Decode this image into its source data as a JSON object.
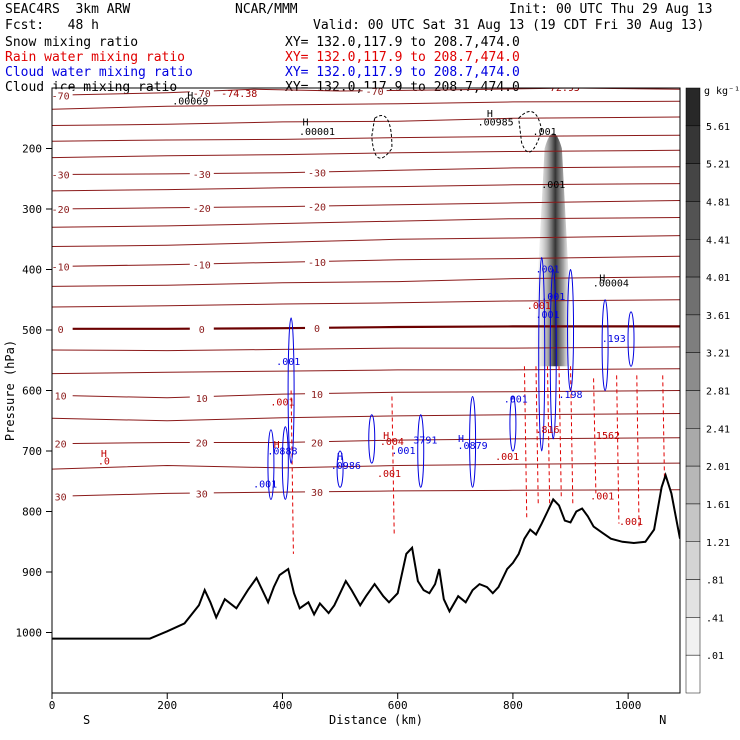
{
  "header": {
    "model": "SEAC4RS  3km ARW",
    "org": "NCAR/MMM",
    "init": "Init: 00 UTC Thu 29 Aug 13",
    "fcst": "Fcst:   48 h",
    "valid": "Valid: 00 UTC Sat 31 Aug 13 (19 CDT Fri 30 Aug 13)"
  },
  "fields": [
    {
      "name": "Snow mixing ratio",
      "color": "#000000",
      "xy": "XY= 132.0,117.9 to 208.7,474.0"
    },
    {
      "name": "Rain water mixing ratio",
      "color": "#e00000",
      "xy": "XY= 132.0,117.9 to 208.7,474.0"
    },
    {
      "name": "Cloud water mixing ratio",
      "color": "#0000e0",
      "xy": "XY= 132.0,117.9 to 208.7,474.0"
    },
    {
      "name": "Cloud ice mixing ratio",
      "color": "#000000",
      "xy": "XY= 132.0,117.9 to 208.7,474.0"
    }
  ],
  "chart_data": {
    "type": "cross-section",
    "xlabel": "Distance (km)",
    "ylabel": "Pressure (hPa)",
    "xlim": [
      0,
      1090
    ],
    "ylim": [
      1100,
      100
    ],
    "x_ticks": [
      0,
      200,
      400,
      600,
      800,
      1000
    ],
    "y_ticks": [
      200,
      300,
      400,
      500,
      600,
      700,
      800,
      900,
      1000
    ],
    "end_labels": {
      "left": "S",
      "right": "N"
    },
    "colorbar": {
      "unit": "g kg⁻¹",
      "levels": [
        "5.61",
        "5.21",
        "4.81",
        "4.41",
        "4.01",
        "3.61",
        "3.21",
        "2.81",
        "2.41",
        "2.01",
        "1.61",
        "1.21",
        ".81",
        ".41",
        ".01"
      ]
    },
    "terrain": [
      [
        0,
        1010
      ],
      [
        170,
        1010
      ],
      [
        200,
        998
      ],
      [
        230,
        985
      ],
      [
        255,
        955
      ],
      [
        265,
        930
      ],
      [
        275,
        950
      ],
      [
        285,
        975
      ],
      [
        300,
        945
      ],
      [
        320,
        960
      ],
      [
        340,
        930
      ],
      [
        355,
        910
      ],
      [
        365,
        930
      ],
      [
        375,
        950
      ],
      [
        385,
        925
      ],
      [
        395,
        905
      ],
      [
        410,
        895
      ],
      [
        420,
        935
      ],
      [
        430,
        960
      ],
      [
        445,
        950
      ],
      [
        455,
        970
      ],
      [
        465,
        952
      ],
      [
        480,
        968
      ],
      [
        490,
        955
      ],
      [
        500,
        935
      ],
      [
        510,
        915
      ],
      [
        520,
        930
      ],
      [
        535,
        955
      ],
      [
        545,
        940
      ],
      [
        560,
        920
      ],
      [
        575,
        940
      ],
      [
        585,
        950
      ],
      [
        600,
        935
      ],
      [
        615,
        870
      ],
      [
        625,
        860
      ],
      [
        635,
        915
      ],
      [
        645,
        930
      ],
      [
        655,
        935
      ],
      [
        665,
        920
      ],
      [
        672,
        895
      ],
      [
        680,
        945
      ],
      [
        690,
        965
      ],
      [
        705,
        940
      ],
      [
        718,
        950
      ],
      [
        730,
        930
      ],
      [
        742,
        920
      ],
      [
        755,
        925
      ],
      [
        765,
        935
      ],
      [
        775,
        925
      ],
      [
        790,
        895
      ],
      [
        800,
        885
      ],
      [
        810,
        870
      ],
      [
        820,
        845
      ],
      [
        830,
        830
      ],
      [
        840,
        838
      ],
      [
        850,
        820
      ],
      [
        860,
        800
      ],
      [
        870,
        780
      ],
      [
        880,
        790
      ],
      [
        890,
        815
      ],
      [
        900,
        818
      ],
      [
        910,
        800
      ],
      [
        920,
        795
      ],
      [
        930,
        808
      ],
      [
        940,
        825
      ],
      [
        955,
        835
      ],
      [
        970,
        845
      ],
      [
        990,
        850
      ],
      [
        1010,
        852
      ],
      [
        1030,
        850
      ],
      [
        1045,
        830
      ],
      [
        1058,
        760
      ],
      [
        1065,
        740
      ],
      [
        1075,
        770
      ],
      [
        1085,
        820
      ],
      [
        1090,
        845
      ]
    ],
    "temperature_contours_degC": [
      {
        "label": "-70",
        "p": [
          [
            0,
            112
          ],
          [
            200,
            108
          ],
          [
            350,
            102
          ],
          [
            500,
            105
          ],
          [
            700,
            103
          ],
          [
            900,
            100
          ],
          [
            1090,
            102
          ]
        ]
      },
      {
        "label": "",
        "p": [
          [
            0,
            135
          ],
          [
            200,
            130
          ],
          [
            400,
            128
          ],
          [
            600,
            126
          ],
          [
            800,
            123
          ],
          [
            1090,
            122
          ]
        ]
      },
      {
        "label": "",
        "p": [
          [
            0,
            162
          ],
          [
            200,
            160
          ],
          [
            400,
            156
          ],
          [
            600,
            155
          ],
          [
            800,
            150
          ],
          [
            1090,
            148
          ]
        ]
      },
      {
        "label": "",
        "p": [
          [
            0,
            188
          ],
          [
            200,
            186
          ],
          [
            400,
            185
          ],
          [
            600,
            182
          ],
          [
            800,
            180
          ],
          [
            1090,
            178
          ]
        ]
      },
      {
        "label": "",
        "p": [
          [
            0,
            215
          ],
          [
            200,
            212
          ],
          [
            400,
            210
          ],
          [
            600,
            207
          ],
          [
            800,
            205
          ],
          [
            1090,
            203
          ]
        ]
      },
      {
        "label": "-30",
        "p": [
          [
            0,
            243
          ],
          [
            200,
            242
          ],
          [
            400,
            240
          ],
          [
            600,
            236
          ],
          [
            800,
            232
          ],
          [
            1090,
            230
          ]
        ]
      },
      {
        "label": "",
        "p": [
          [
            0,
            270
          ],
          [
            200,
            268
          ],
          [
            400,
            265
          ],
          [
            600,
            263
          ],
          [
            800,
            260
          ],
          [
            1090,
            258
          ]
        ]
      },
      {
        "label": "-20",
        "p": [
          [
            0,
            300
          ],
          [
            200,
            298
          ],
          [
            400,
            296
          ],
          [
            600,
            293
          ],
          [
            800,
            290
          ],
          [
            1090,
            286
          ]
        ]
      },
      {
        "label": "",
        "p": [
          [
            0,
            330
          ],
          [
            200,
            328
          ],
          [
            400,
            324
          ],
          [
            600,
            320
          ],
          [
            800,
            316
          ],
          [
            1090,
            314
          ]
        ]
      },
      {
        "label": "",
        "p": [
          [
            0,
            362
          ],
          [
            200,
            360
          ],
          [
            400,
            355
          ],
          [
            600,
            350
          ],
          [
            800,
            348
          ],
          [
            1090,
            344
          ]
        ]
      },
      {
        "label": "-10",
        "p": [
          [
            0,
            395
          ],
          [
            200,
            392
          ],
          [
            400,
            388
          ],
          [
            600,
            384
          ],
          [
            800,
            382
          ],
          [
            1090,
            378
          ]
        ]
      },
      {
        "label": "",
        "p": [
          [
            0,
            428
          ],
          [
            200,
            426
          ],
          [
            400,
            422
          ],
          [
            600,
            420
          ],
          [
            800,
            415
          ],
          [
            1090,
            412
          ]
        ]
      },
      {
        "label": "",
        "p": [
          [
            0,
            462
          ],
          [
            200,
            460
          ],
          [
            400,
            457
          ],
          [
            600,
            455
          ],
          [
            800,
            452
          ],
          [
            1090,
            450
          ]
        ]
      },
      {
        "label": "0",
        "p": [
          [
            0,
            498
          ],
          [
            200,
            498
          ],
          [
            400,
            497
          ],
          [
            600,
            495
          ],
          [
            800,
            494
          ],
          [
            1090,
            494
          ]
        ]
      },
      {
        "label": "",
        "p": [
          [
            0,
            533
          ],
          [
            200,
            534
          ],
          [
            400,
            532
          ],
          [
            600,
            530
          ],
          [
            800,
            530
          ],
          [
            1090,
            528
          ]
        ]
      },
      {
        "label": "",
        "p": [
          [
            0,
            572
          ],
          [
            200,
            570
          ],
          [
            400,
            568
          ],
          [
            600,
            566
          ],
          [
            800,
            566
          ],
          [
            1090,
            564
          ]
        ]
      },
      {
        "label": "10",
        "p": [
          [
            0,
            608
          ],
          [
            200,
            612
          ],
          [
            400,
            606
          ],
          [
            600,
            603
          ],
          [
            800,
            602
          ],
          [
            1090,
            600
          ]
        ]
      },
      {
        "label": "",
        "p": [
          [
            0,
            646
          ],
          [
            200,
            650
          ],
          [
            400,
            645
          ],
          [
            600,
            642
          ],
          [
            800,
            640
          ],
          [
            1090,
            638
          ]
        ]
      },
      {
        "label": "20",
        "p": [
          [
            0,
            688
          ],
          [
            200,
            686
          ],
          [
            400,
            686
          ],
          [
            600,
            682
          ],
          [
            800,
            680
          ],
          [
            1090,
            678
          ]
        ]
      },
      {
        "label": "",
        "p": [
          [
            0,
            730
          ],
          [
            200,
            724
          ],
          [
            400,
            728
          ],
          [
            600,
            724
          ],
          [
            800,
            722
          ],
          [
            1090,
            720
          ]
        ]
      },
      {
        "label": "30",
        "p": [
          [
            0,
            775
          ],
          [
            200,
            770
          ],
          [
            400,
            768
          ],
          [
            600,
            766
          ],
          [
            800,
            765
          ],
          [
            1090,
            764
          ]
        ]
      }
    ],
    "annotations": [
      {
        "text": "H",
        "x": 240,
        "p": 118,
        "color": "#000000"
      },
      {
        "text": ".00069",
        "x": 240,
        "p": 127,
        "color": "#000000"
      },
      {
        "text": "H",
        "x": 440,
        "p": 162,
        "color": "#000000"
      },
      {
        "text": ".00001",
        "x": 460,
        "p": 178,
        "color": "#000000"
      },
      {
        "text": "H",
        "x": 760,
        "p": 148,
        "color": "#000000"
      },
      {
        "text": ".00985",
        "x": 770,
        "p": 162,
        "color": "#000000"
      },
      {
        "text": "-74.38",
        "x": 325,
        "p": 115,
        "color": "#a00000"
      },
      {
        "text": "-72.95",
        "x": 885,
        "p": 105,
        "color": "#a00000"
      },
      {
        "text": ".001",
        "x": 855,
        "p": 178,
        "color": "#000000"
      },
      {
        "text": ".001",
        "x": 870,
        "p": 265,
        "color": "#000000"
      },
      {
        "text": "H",
        "x": 955,
        "p": 420,
        "color": "#000000"
      },
      {
        "text": ".00004",
        "x": 970,
        "p": 428,
        "color": "#000000"
      },
      {
        "text": ".001",
        "x": 410,
        "p": 558,
        "color": "#0000e0"
      },
      {
        "text": ".001",
        "x": 400,
        "p": 625,
        "color": "#c00000"
      },
      {
        "text": "H",
        "x": 390,
        "p": 695,
        "color": "#c00000"
      },
      {
        "text": ".0888",
        "x": 400,
        "p": 706,
        "color": "#0000e0"
      },
      {
        "text": ".001",
        "x": 370,
        "p": 760,
        "color": "#0000e0"
      },
      {
        "text": "H",
        "x": 500,
        "p": 715,
        "color": "#0000e0"
      },
      {
        "text": ".0986",
        "x": 510,
        "p": 730,
        "color": "#0000e0"
      },
      {
        "text": "H",
        "x": 580,
        "p": 680,
        "color": "#c00000"
      },
      {
        "text": ".004",
        "x": 590,
        "p": 690,
        "color": "#c00000"
      },
      {
        "text": "3791",
        "x": 648,
        "p": 688,
        "color": "#0000e0"
      },
      {
        "text": ".001",
        "x": 610,
        "p": 705,
        "color": "#0000e0"
      },
      {
        "text": ".001",
        "x": 585,
        "p": 743,
        "color": "#c00000"
      },
      {
        "text": "H",
        "x": 710,
        "p": 685,
        "color": "#0000e0"
      },
      {
        "text": ".0879",
        "x": 730,
        "p": 697,
        "color": "#0000e0"
      },
      {
        "text": ".001",
        "x": 805,
        "p": 620,
        "color": "#0000e0"
      },
      {
        "text": ".001",
        "x": 790,
        "p": 715,
        "color": "#c00000"
      },
      {
        "text": ".816",
        "x": 860,
        "p": 670,
        "color": "#c00000"
      },
      {
        "text": ".198",
        "x": 900,
        "p": 612,
        "color": "#0000e0"
      },
      {
        "text": ".001",
        "x": 845,
        "p": 465,
        "color": "#c00000"
      },
      {
        "text": ".001",
        "x": 860,
        "p": 480,
        "color": "#0000e0"
      },
      {
        "text": ".001",
        "x": 860,
        "p": 405,
        "color": "#0000e0"
      },
      {
        "text": ".001",
        "x": 870,
        "p": 450,
        "color": "#0000e0"
      },
      {
        "text": ".193",
        "x": 975,
        "p": 520,
        "color": "#0000e0"
      },
      {
        "text": "1562",
        "x": 965,
        "p": 680,
        "color": "#c00000"
      },
      {
        "text": ".001",
        "x": 955,
        "p": 780,
        "color": "#c00000"
      },
      {
        "text": ".001",
        "x": 1005,
        "p": 822,
        "color": "#c00000"
      },
      {
        "text": "H",
        "x": 90,
        "p": 710,
        "color": "#c00000"
      },
      {
        "text": ".0",
        "x": 90,
        "p": 722,
        "color": "#c00000"
      }
    ]
  }
}
